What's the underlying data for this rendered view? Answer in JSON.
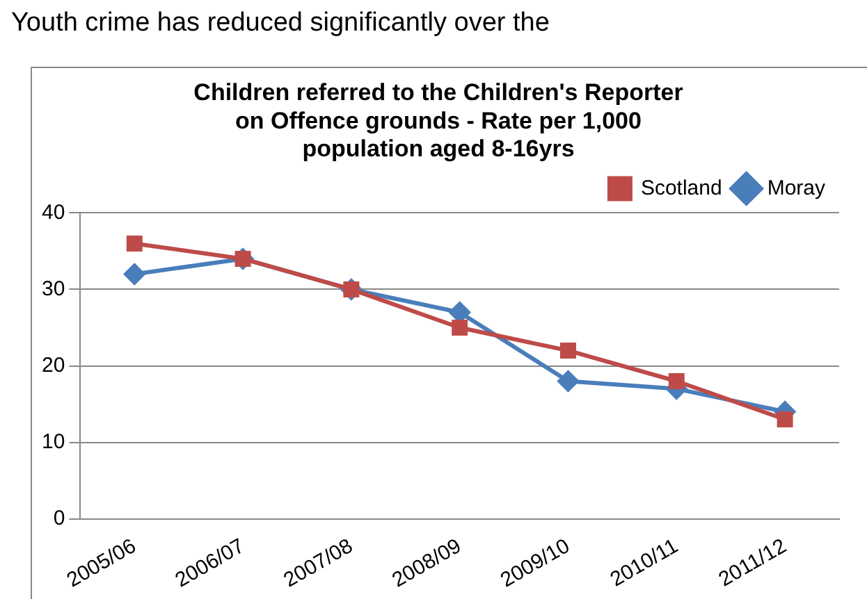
{
  "chart_data": {
    "type": "line",
    "title": "Children referred to the Children's Reporter\non Offence grounds - Rate per 1,000\npopulation aged 8-16yrs",
    "annotations": [
      "Youth crime has reduced significantly over the"
    ],
    "categories": [
      "2005/06",
      "2006/07",
      "2007/08",
      "2008/09",
      "2009/10",
      "2010/11",
      "2011/12"
    ],
    "series": [
      {
        "name": "Moray",
        "color": "#4a7ebb",
        "marker": "diamond",
        "values": [
          32,
          34,
          30,
          27,
          18,
          17,
          14
        ]
      },
      {
        "name": "Scotland",
        "color": "#be4b48",
        "marker": "square",
        "values": [
          36,
          34,
          30,
          25,
          22,
          18,
          13
        ]
      }
    ],
    "ylim": [
      0,
      40
    ],
    "yticks": [
      0,
      10,
      20,
      30,
      40
    ],
    "grid": "y",
    "legend": "top right"
  }
}
